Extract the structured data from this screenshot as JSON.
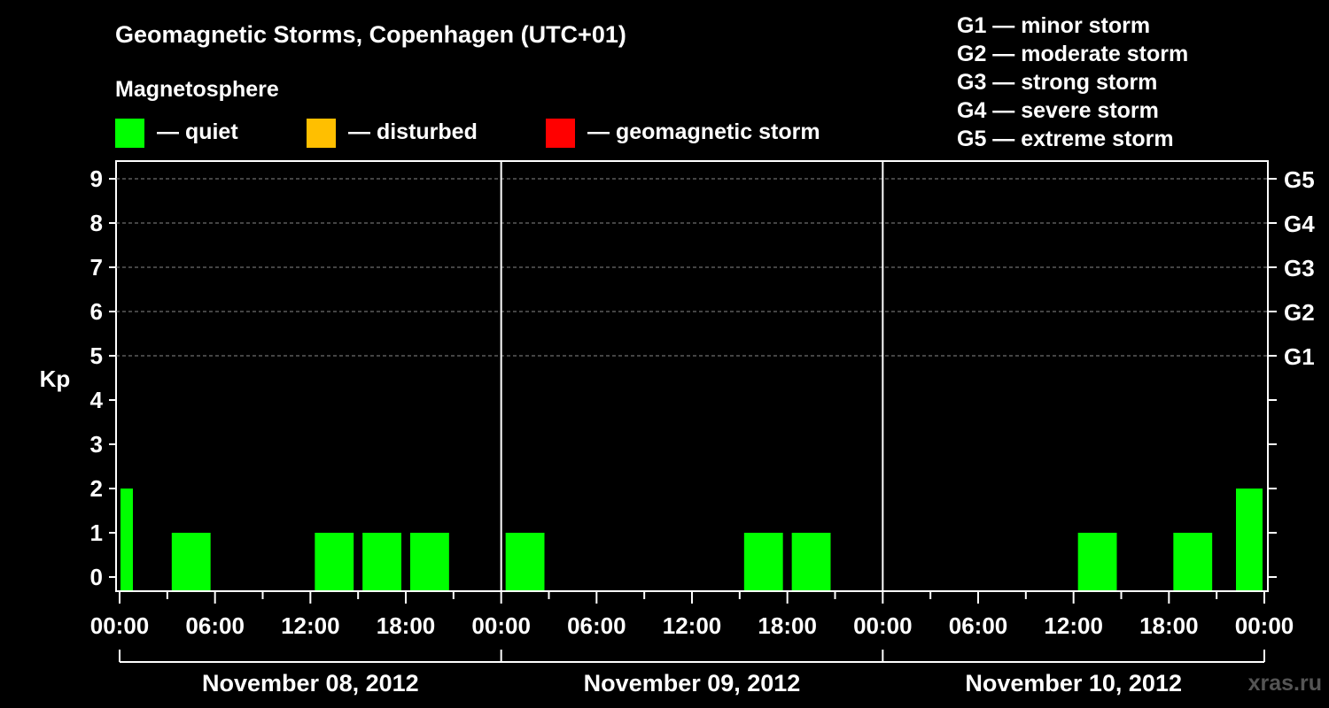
{
  "chart_data": {
    "type": "bar",
    "title": "Geomagnetic Storms, Copenhagen (UTC+01)",
    "ylabel": "Kp",
    "ylim": [
      0,
      9
    ],
    "yticks": [
      "0",
      "1",
      "2",
      "3",
      "4",
      "5",
      "6",
      "7",
      "8",
      "9"
    ],
    "right_ticks": [
      {
        "kp": 5,
        "label": "G1"
      },
      {
        "kp": 6,
        "label": "G2"
      },
      {
        "kp": 7,
        "label": "G3"
      },
      {
        "kp": 8,
        "label": "G4"
      },
      {
        "kp": 9,
        "label": "G5"
      }
    ],
    "grid": "dashed horizontal at Kp 5-9",
    "magnetosphere_label": "Magnetosphere",
    "legend": [
      {
        "label": "— quiet",
        "color": "#00ff00"
      },
      {
        "label": "— disturbed",
        "color": "#ffbf00"
      },
      {
        "label": "— geomagnetic storm",
        "color": "#ff0000"
      }
    ],
    "storm_scale": [
      "G1 — minor storm",
      "G2 — moderate storm",
      "G3 — strong storm",
      "G4 — severe storm",
      "G5 — extreme storm"
    ],
    "x_labels": [
      "00:00",
      "06:00",
      "12:00",
      "18:00",
      "00:00",
      "06:00",
      "12:00",
      "18:00",
      "00:00",
      "06:00",
      "12:00",
      "18:00",
      "00:00"
    ],
    "days": [
      "November 08, 2012",
      "November 09, 2012",
      "November 10, 2012"
    ],
    "interval_hours": 3,
    "series": [
      {
        "values": [
          2,
          1,
          0,
          0,
          1,
          1,
          1,
          0,
          1,
          0,
          0,
          0,
          0,
          1,
          1,
          0,
          0,
          0,
          0,
          0,
          1,
          0,
          1,
          2
        ],
        "colors": [
          "#00ff00",
          "#00ff00",
          "#00ff00",
          "#00ff00",
          "#00ff00",
          "#00ff00",
          "#00ff00",
          "#00ff00",
          "#00ff00",
          "#00ff00",
          "#00ff00",
          "#00ff00",
          "#00ff00",
          "#00ff00",
          "#00ff00",
          "#00ff00",
          "#00ff00",
          "#00ff00",
          "#00ff00",
          "#00ff00",
          "#00ff00",
          "#00ff00",
          "#00ff00",
          "#00ff00"
        ]
      }
    ],
    "watermark": "xras.ru"
  }
}
